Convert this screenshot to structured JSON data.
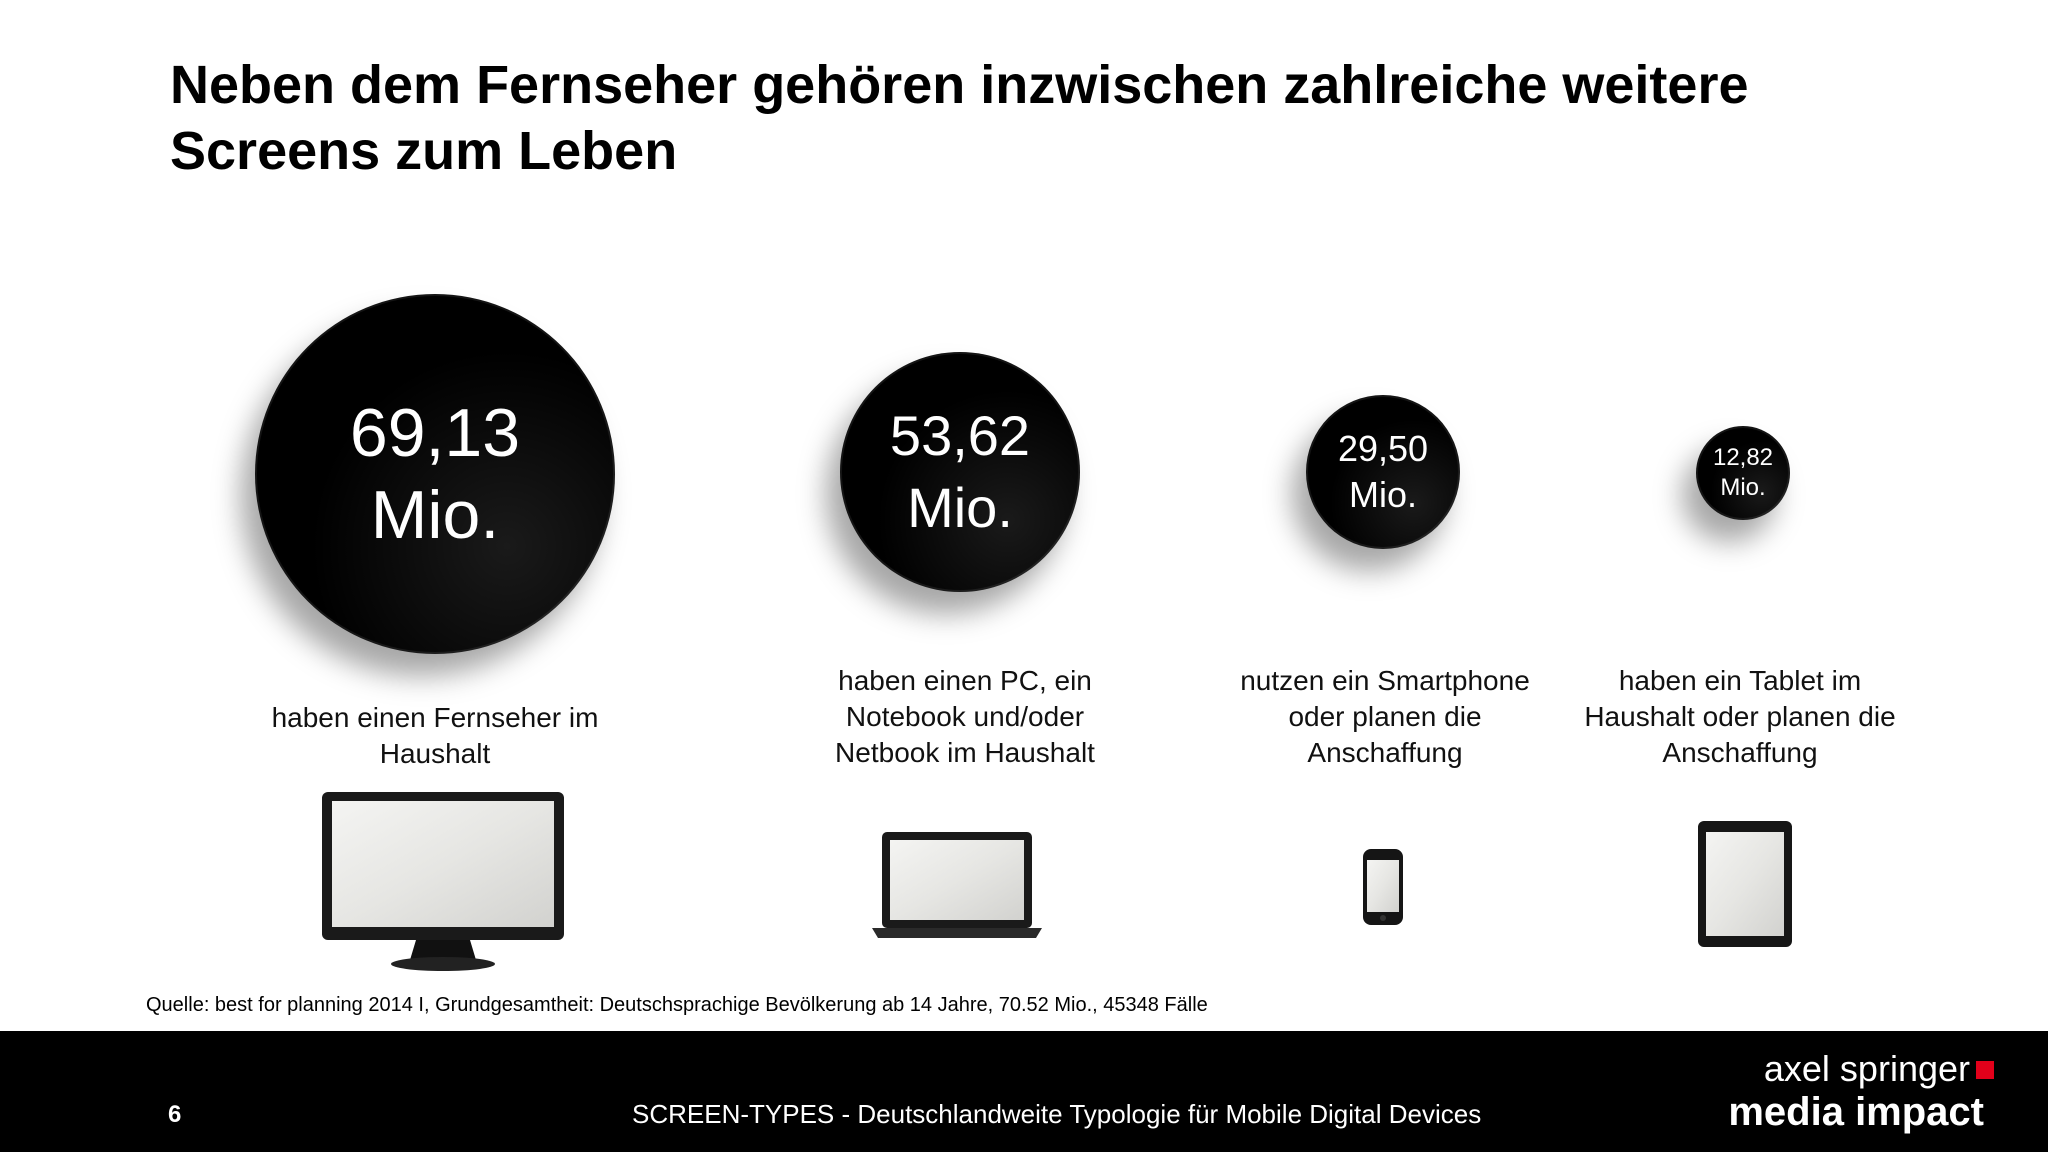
{
  "slide": {
    "title_line1": "Neben dem Fernseher gehören inzwischen zahlreiche weitere",
    "title_line2": "Screens zum Leben"
  },
  "stats": [
    {
      "value": "69,13",
      "unit": "Mio.",
      "description": "haben einen Fernseher im Haushalt",
      "device_icon": "tv-icon"
    },
    {
      "value": "53,62",
      "unit": "Mio.",
      "description": "haben einen PC, ein Notebook und/oder Netbook im Haushalt",
      "device_icon": "laptop-icon"
    },
    {
      "value": "29,50",
      "unit": "Mio.",
      "description": "nutzen ein Smartphone oder planen die Anschaffung",
      "device_icon": "smartphone-icon"
    },
    {
      "value": "12,82",
      "unit": "Mio.",
      "description": "haben ein Tablet im Haushalt oder planen die Anschaffung",
      "device_icon": "tablet-icon"
    }
  ],
  "source": "Quelle: best for planning 2014 I, Grundgesamtheit: Deutschsprachige Bevölkerung ab 14 Jahre, 70.52 Mio., 45348 Fälle",
  "footer": {
    "page_number": "6",
    "title": "SCREEN-TYPES - Deutschlandweite Typologie für Mobile Digital Devices",
    "brand_line1": "axel springer",
    "brand_line2": "media impact",
    "brand_color": "#e2001a",
    "background": "#000000"
  }
}
